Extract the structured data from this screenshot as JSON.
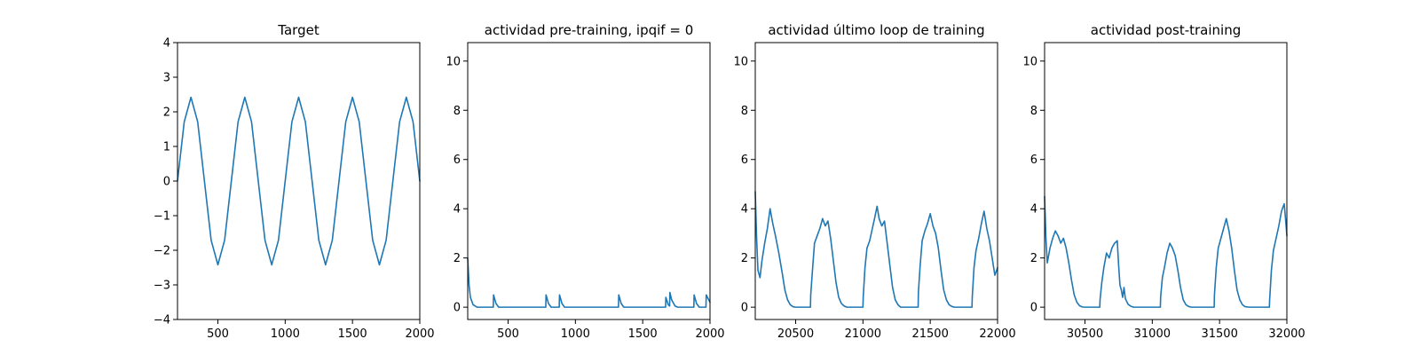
{
  "chart_data": [
    {
      "type": "line",
      "title": "Target",
      "xlim": [
        200,
        2000
      ],
      "ylim": [
        -4,
        4
      ],
      "xticks": [
        500,
        1000,
        1500,
        2000
      ],
      "yticks": [
        -4,
        -3,
        -2,
        -1,
        0,
        1,
        2,
        3,
        4
      ],
      "xtick_labels": [
        "500",
        "1000",
        "1500",
        "2000"
      ],
      "ytick_labels": [
        "−4",
        "−3",
        "−2",
        "−1",
        "0",
        "1",
        "2",
        "3",
        "4"
      ],
      "grid": false,
      "series": [
        {
          "color": "#1f77b4",
          "x": [
            200,
            250,
            300,
            350,
            400,
            450,
            500,
            550,
            600,
            650,
            700,
            750,
            800,
            850,
            900,
            950,
            1000,
            1050,
            1100,
            1150,
            1200,
            1250,
            1300,
            1350,
            1400,
            1450,
            1500,
            1550,
            1600,
            1650,
            1700,
            1750,
            1800,
            1850,
            1900,
            1950,
            2000
          ],
          "y": [
            0.0,
            1.71,
            2.42,
            1.71,
            0.0,
            -1.71,
            -2.42,
            -1.71,
            0.0,
            1.71,
            2.42,
            1.71,
            0.0,
            -1.71,
            -2.42,
            -1.71,
            0.0,
            1.71,
            2.42,
            1.71,
            0.0,
            -1.71,
            -2.42,
            -1.71,
            0.0,
            1.71,
            2.42,
            1.71,
            0.0,
            -1.71,
            -2.42,
            -1.71,
            0.0,
            1.71,
            2.42,
            1.71,
            0.0
          ]
        }
      ]
    },
    {
      "type": "line",
      "title": "actividad pre-training, ipqif = 0",
      "xlim": [
        200,
        2000
      ],
      "ylim": [
        -0.5,
        10.75
      ],
      "xticks": [
        500,
        1000,
        1500,
        2000
      ],
      "yticks": [
        0,
        2,
        4,
        6,
        8,
        10
      ],
      "xtick_labels": [
        "500",
        "1000",
        "1500",
        "2000"
      ],
      "ytick_labels": [
        "0",
        "2",
        "4",
        "6",
        "8",
        "10"
      ],
      "grid": false,
      "series": [
        {
          "color": "#1f77b4",
          "x": [
            200,
            210,
            220,
            240,
            270,
            390,
            392,
            410,
            430,
            780,
            782,
            800,
            820,
            880,
            882,
            900,
            920,
            1320,
            1322,
            1340,
            1360,
            1670,
            1672,
            1690,
            1700,
            1702,
            1715,
            1740,
            1760,
            1880,
            1882,
            1900,
            1920,
            1970,
            1972,
            2000
          ],
          "y": [
            2.0,
            0.9,
            0.4,
            0.1,
            0.0,
            0.0,
            0.5,
            0.15,
            0.0,
            0.0,
            0.5,
            0.15,
            0.0,
            0.0,
            0.5,
            0.15,
            0.0,
            0.0,
            0.5,
            0.15,
            0.0,
            0.0,
            0.4,
            0.1,
            0.05,
            0.6,
            0.3,
            0.05,
            0.0,
            0.0,
            0.5,
            0.15,
            0.0,
            0.0,
            0.5,
            0.2
          ]
        }
      ]
    },
    {
      "type": "line",
      "title": "actividad último loop de training",
      "xlim": [
        20200,
        22000
      ],
      "ylim": [
        -0.5,
        10.75
      ],
      "xticks": [
        20500,
        21000,
        21500,
        22000
      ],
      "yticks": [
        0,
        2,
        4,
        6,
        8,
        10
      ],
      "xtick_labels": [
        "20500",
        "21000",
        "21500",
        "22000"
      ],
      "ytick_labels": [
        "0",
        "2",
        "4",
        "6",
        "8",
        "10"
      ],
      "grid": false,
      "series": [
        {
          "color": "#1f77b4",
          "x": [
            20200,
            20210,
            20220,
            20235,
            20250,
            20270,
            20290,
            20310,
            20330,
            20350,
            20375,
            20400,
            20420,
            20440,
            20460,
            20480,
            20500,
            20550,
            20610,
            20612,
            20625,
            20640,
            20660,
            20680,
            20700,
            20720,
            20740,
            20760,
            20780,
            20800,
            20820,
            20840,
            20860,
            20880,
            20920,
            21000,
            21002,
            21015,
            21030,
            21050,
            21070,
            21090,
            21105,
            21120,
            21140,
            21160,
            21180,
            21200,
            21220,
            21240,
            21260,
            21280,
            21320,
            21410,
            21412,
            21425,
            21440,
            21460,
            21480,
            21500,
            21520,
            21540,
            21560,
            21580,
            21600,
            21620,
            21640,
            21660,
            21680,
            21720,
            21810,
            21812,
            21825,
            21840,
            21860,
            21880,
            21900,
            21920,
            21940,
            21960,
            21980,
            22000
          ],
          "y": [
            4.7,
            2.8,
            1.5,
            1.2,
            1.9,
            2.6,
            3.2,
            4.0,
            3.4,
            2.9,
            2.2,
            1.4,
            0.7,
            0.3,
            0.1,
            0.02,
            0.0,
            0.0,
            0.0,
            0.5,
            1.5,
            2.6,
            2.9,
            3.2,
            3.6,
            3.3,
            3.5,
            2.8,
            1.9,
            1.0,
            0.4,
            0.15,
            0.05,
            0.0,
            0.0,
            0.0,
            0.4,
            1.6,
            2.4,
            2.7,
            3.2,
            3.7,
            4.1,
            3.6,
            3.3,
            3.5,
            2.6,
            1.7,
            0.8,
            0.3,
            0.1,
            0.0,
            0.0,
            0.0,
            0.6,
            1.7,
            2.7,
            3.1,
            3.4,
            3.8,
            3.3,
            3.0,
            2.4,
            1.5,
            0.7,
            0.3,
            0.1,
            0.03,
            0.0,
            0.0,
            0.0,
            0.4,
            1.6,
            2.3,
            2.8,
            3.4,
            3.9,
            3.2,
            2.7,
            2.0,
            1.3,
            1.6
          ]
        }
      ]
    },
    {
      "type": "line",
      "title": "actividad post-training",
      "xlim": [
        30200,
        32000
      ],
      "ylim": [
        -0.5,
        10.75
      ],
      "xticks": [
        30500,
        31000,
        31500,
        32000
      ],
      "yticks": [
        0,
        2,
        4,
        6,
        8,
        10
      ],
      "xtick_labels": [
        "30500",
        "31000",
        "31500",
        "32000"
      ],
      "ytick_labels": [
        "0",
        "2",
        "4",
        "6",
        "8",
        "10"
      ],
      "grid": false,
      "series": [
        {
          "color": "#1f77b4",
          "x": [
            30200,
            30210,
            30220,
            30240,
            30260,
            30280,
            30300,
            30320,
            30340,
            30360,
            30380,
            30400,
            30420,
            30440,
            30460,
            30480,
            30500,
            30560,
            30610,
            30612,
            30625,
            30640,
            30660,
            30680,
            30700,
            30720,
            30740,
            30750,
            30760,
            30770,
            30780,
            30790,
            30800,
            30820,
            30840,
            30860,
            30900,
            31000,
            31060,
            31062,
            31075,
            31090,
            31110,
            31130,
            31150,
            31170,
            31190,
            31210,
            31230,
            31250,
            31270,
            31290,
            31330,
            31400,
            31460,
            31462,
            31475,
            31490,
            31510,
            31530,
            31550,
            31570,
            31590,
            31610,
            31630,
            31650,
            31670,
            31690,
            31720,
            31800,
            31870,
            31872,
            31885,
            31900,
            31920,
            31940,
            31960,
            31980,
            31990,
            32000
          ],
          "y": [
            4.5,
            2.8,
            1.8,
            2.4,
            2.8,
            3.1,
            2.9,
            2.6,
            2.8,
            2.4,
            1.8,
            1.1,
            0.5,
            0.2,
            0.06,
            0.01,
            0.0,
            0.0,
            0.0,
            0.3,
            1.0,
            1.6,
            2.2,
            2.0,
            2.4,
            2.6,
            2.7,
            1.7,
            0.9,
            0.7,
            0.4,
            0.8,
            0.35,
            0.12,
            0.04,
            0.0,
            0.0,
            0.0,
            0.0,
            0.4,
            1.2,
            1.6,
            2.2,
            2.6,
            2.4,
            2.1,
            1.5,
            0.8,
            0.3,
            0.1,
            0.03,
            0.0,
            0.0,
            0.0,
            0.0,
            0.5,
            1.6,
            2.4,
            2.8,
            3.2,
            3.6,
            3.1,
            2.4,
            1.5,
            0.7,
            0.3,
            0.1,
            0.02,
            0.0,
            0.0,
            0.0,
            0.3,
            1.5,
            2.3,
            2.8,
            3.3,
            3.9,
            4.2,
            3.6,
            2.9
          ]
        }
      ]
    }
  ]
}
